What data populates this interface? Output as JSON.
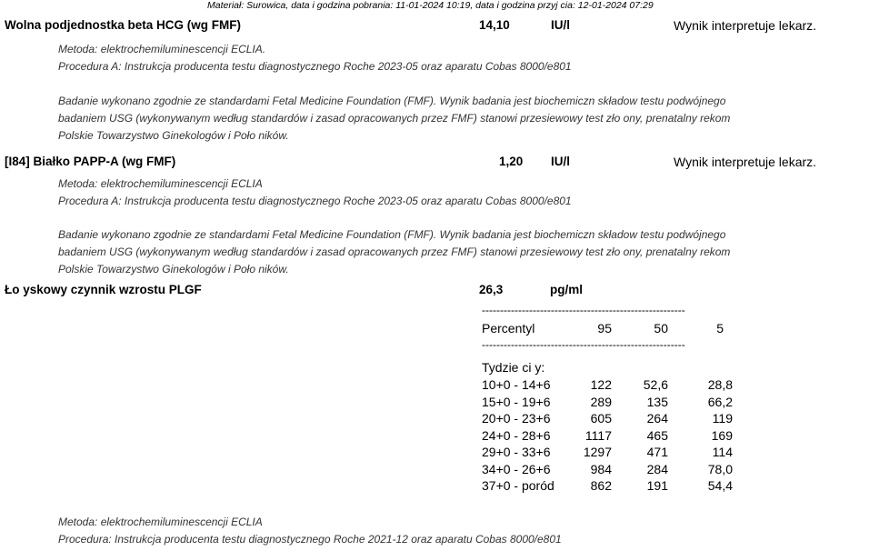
{
  "header": "Materiał: Surowica, data i godzina pobrania: 11-01-2024 10:19, data i godzina przyj  cia: 12-01-2024 07:29",
  "tests": [
    {
      "title": "Wolna podjednostka beta HCG (wg FMF)",
      "value": "14,10",
      "unit": "IU/l",
      "comment": "Wynik interpretuje lekarz.",
      "method": "Metoda: elektrochemiluminescencji ECLIA.",
      "procedure": "Procedura A: Instrukcja producenta testu diagnostycznego Roche 2023-05 oraz aparatu Cobas 8000/e801",
      "note": [
        "Badanie wykonano zgodnie ze standardami Fetal Medicine Foundation (FMF). Wynik badania jest biochemiczn   składow   testu podwójnego",
        "badaniem USG (wykonywanym według standardów i zasad opracowanych przez FMF) stanowi przesiewowy test zło  ony, prenatalny rekom",
        "Polskie Towarzystwo Ginekologów i Poło  ników."
      ]
    },
    {
      "title": "[I84] Białko PAPP-A (wg FMF)",
      "value": "1,20",
      "unit": "IU/l",
      "comment": "Wynik interpretuje lekarz.",
      "method": "Metoda: elektrochemiluminescencji ECLIA",
      "procedure": "Procedura A: Instrukcja producenta testu diagnostycznego Roche 2023-05 oraz aparatu Cobas 8000/e801",
      "note": [
        "Badanie wykonano zgodnie ze standardami Fetal Medicine Foundation (FMF). Wynik badania jest biochemiczn   składow   testu podwójnego",
        "badaniem USG (wykonywanym według standardów i zasad opracowanych przez FMF) stanowi przesiewowy test zło  ony, prenatalny rekom",
        "Polskie Towarzystwo Ginekologów i Poło  ników."
      ]
    },
    {
      "title": "Ło  yskowy czynnik wzrostu PLGF",
      "value": "26,3",
      "unit": "pg/ml",
      "method": "Metoda: elektrochemiluminescencji ECLIA",
      "procedure": "Procedura: Instrukcja producenta testu diagnostycznego Roche 2021-12 oraz aparatu Cobas 8000/e801"
    }
  ],
  "ref_table": {
    "separator": "--------------------------------------------------------",
    "header": [
      "Percentyl",
      "95",
      "50",
      "5"
    ],
    "section_label": "Tydzie   ci    y:",
    "rows": [
      [
        "10+0 - 14+6",
        "122",
        "52,6",
        "28,8"
      ],
      [
        "15+0 - 19+6",
        "289",
        "135",
        "66,2"
      ],
      [
        "20+0 - 23+6",
        "605",
        "264",
        "119"
      ],
      [
        "24+0 - 28+6",
        "1117",
        "465",
        "169"
      ],
      [
        "29+0 - 33+6",
        "1297",
        "471",
        "114"
      ],
      [
        "34+0 - 26+6",
        "984",
        "284",
        "78,0"
      ],
      [
        "37+0 - poród",
        "862",
        "191",
        "54,4"
      ]
    ]
  }
}
